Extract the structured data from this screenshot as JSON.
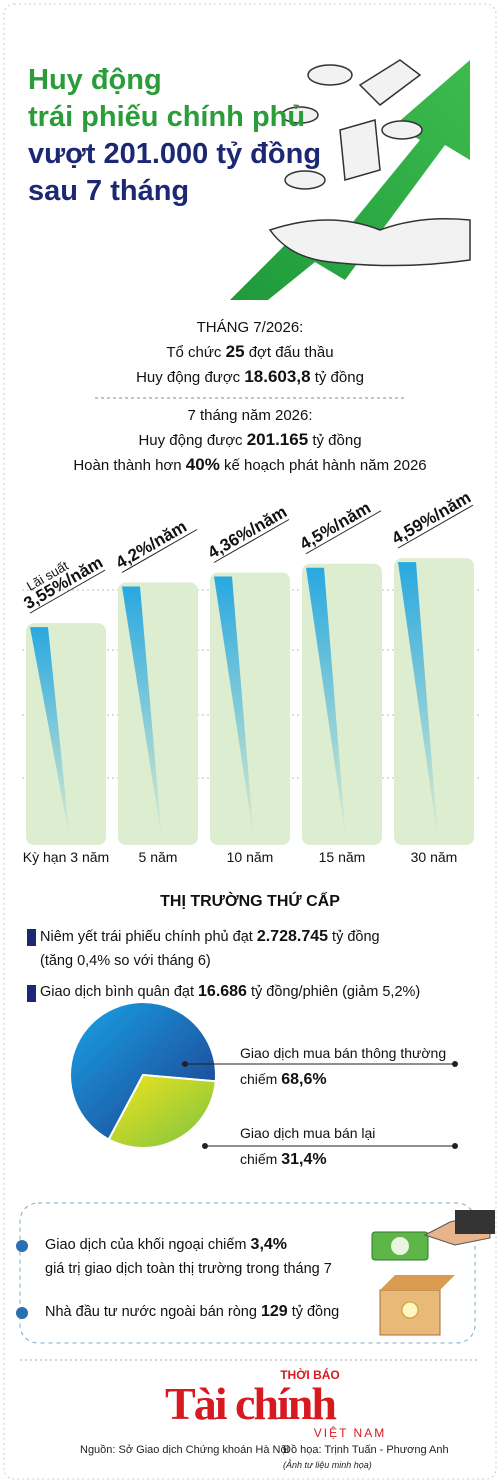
{
  "header": {
    "title": [
      "Huy động",
      "trái phiếu chính phủ",
      "vượt 201.000 tỷ đồng",
      "sau 7 tháng"
    ],
    "title_colors": [
      "#2a9d3a",
      "#2a9d3a",
      "#1c2873",
      "#1c2873"
    ]
  },
  "month_summary": {
    "lines": [
      [
        {
          "text": "THÁNG 7/2026:"
        }
      ],
      [
        {
          "text": "Tổ chức"
        },
        {
          "text": "25",
          "bold": true
        },
        {
          "text": "đợt đấu thầu"
        }
      ],
      [
        {
          "text": "Huy động được"
        },
        {
          "text": "18.603,8",
          "bold": true
        },
        {
          "text": "tỷ đồng"
        }
      ]
    ]
  },
  "ytd_summary": {
    "lines": [
      [
        {
          "text": "7 tháng năm 2026:"
        }
      ],
      [
        {
          "text": "Huy động được"
        },
        {
          "text": "201.165",
          "bold": true
        },
        {
          "text": "tỷ đồng"
        }
      ],
      [
        {
          "text": "Hoàn thành hơn"
        },
        {
          "text": "40%",
          "bold": true
        },
        {
          "text": "kế hoạch phát hành năm 2026"
        }
      ]
    ]
  },
  "chart_data": [
    {
      "type": "bar",
      "annotation": "Lãi suất",
      "categories": [
        "Kỳ hạn 3 năm",
        "5 năm",
        "10 năm",
        "15 năm",
        "30 năm"
      ],
      "values": [
        3.55,
        4.2,
        4.36,
        4.5,
        4.59
      ],
      "value_labels": [
        "3,55%/năm",
        "4,2%/năm",
        "4,36%/năm",
        "4,5%/năm",
        "4,59%/năm"
      ],
      "color": "#dcedd0",
      "accent": "#29a8e0"
    },
    {
      "type": "pie",
      "label_prefix": "chiếm",
      "categories": [
        "Giao dịch mua bán thông thường",
        "Giao dịch mua bán lại"
      ],
      "values": [
        68.6,
        31.4
      ],
      "value_labels": [
        "68,6%",
        "31,4%"
      ],
      "colors": [
        "#1e3a8a",
        "#7cc242"
      ]
    }
  ],
  "secondary_market": {
    "title": "THỊ TRƯỜNG THỨ CẤP",
    "items": [
      {
        "lines": [
          [
            {
              "text": "Niêm yết trái phiếu chính phủ đạt"
            },
            {
              "text": "2.728.745",
              "bold": true
            },
            {
              "text": "tỷ đồng"
            }
          ],
          [
            {
              "text": "(tăng 0,4% so với tháng 6)"
            }
          ]
        ]
      },
      {
        "lines": [
          [
            {
              "text": "Giao dịch bình quân đạt"
            },
            {
              "text": "16.686",
              "bold": true
            },
            {
              "text": "tỷ đồng/phiên (giảm 5,2%)"
            }
          ]
        ]
      }
    ]
  },
  "foreign": {
    "items": [
      {
        "lines": [
          [
            {
              "text": "Giao dịch của khối ngoại chiếm"
            },
            {
              "text": "3,4%",
              "bold": true
            }
          ],
          [
            {
              "text": "giá trị giao dịch toàn thị trường trong tháng 7"
            }
          ]
        ]
      },
      {
        "lines": [
          [
            {
              "text": "Nhà đầu tư nước ngoài bán ròng"
            },
            {
              "text": "129",
              "bold": true
            },
            {
              "text": "tỷ đồng"
            }
          ]
        ]
      }
    ]
  },
  "footer": {
    "logo_top": "THỜI BÁO",
    "logo_main": "Tài chính",
    "logo_bottom": "VIỆT NAM",
    "source": "Nguồn: Sở Giao dịch Chứng khoán Hà Nội",
    "credit": "Đồ họa: Trịnh Tuấn - Phương Anh",
    "photo_note": "(Ảnh tư liệu minh họa)"
  }
}
